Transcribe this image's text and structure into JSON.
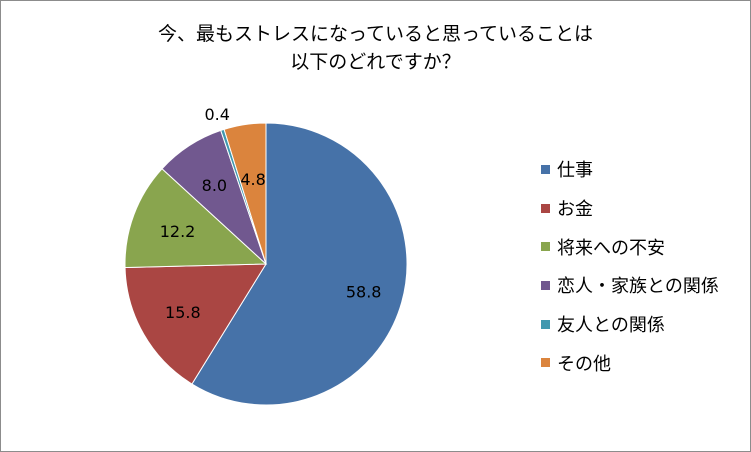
{
  "chart_data": {
    "type": "pie",
    "title_lines": [
      "今、最もストレスになっていると思っていることは",
      "以下のどれですか？"
    ],
    "categories": [
      "仕事",
      "お金",
      "将来への不安",
      "恋人・家族との関係",
      "友人との関係",
      "その他"
    ],
    "values": [
      58.8,
      15.8,
      12.2,
      8.0,
      0.4,
      4.8
    ],
    "value_labels": [
      "58.8",
      "15.8",
      "12.2",
      "8.0",
      "0.4",
      "4.8"
    ],
    "colors": [
      "#4672a8",
      "#aa4643",
      "#89a54e",
      "#71588f",
      "#4198af",
      "#db843d"
    ],
    "legend_position": "right"
  }
}
